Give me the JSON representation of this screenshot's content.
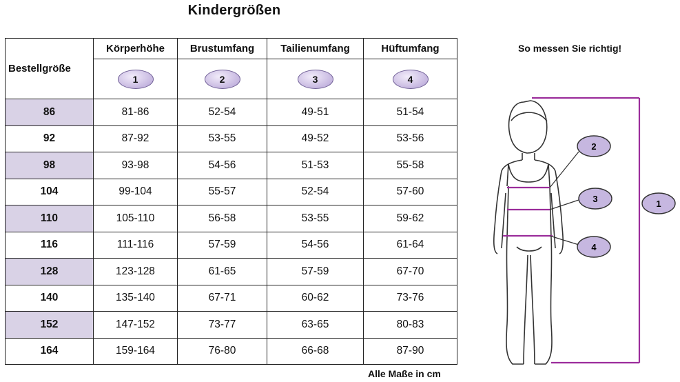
{
  "title": "Kindergrößen",
  "table": {
    "header_size": "Bestellgröße",
    "columns": [
      {
        "label": "Körperhöhe",
        "badge": "1"
      },
      {
        "label": "Brustumfang",
        "badge": "2"
      },
      {
        "label": "Tailienumfang",
        "badge": "3"
      },
      {
        "label": "Hüftumfang",
        "badge": "4"
      }
    ],
    "rows": [
      {
        "size": "86",
        "values": [
          "81-86",
          "52-54",
          "49-51",
          "51-54"
        ],
        "shaded": true
      },
      {
        "size": "92",
        "values": [
          "87-92",
          "53-55",
          "49-52",
          "53-56"
        ],
        "shaded": false
      },
      {
        "size": "98",
        "values": [
          "93-98",
          "54-56",
          "51-53",
          "55-58"
        ],
        "shaded": true
      },
      {
        "size": "104",
        "values": [
          "99-104",
          "55-57",
          "52-54",
          "57-60"
        ],
        "shaded": false
      },
      {
        "size": "110",
        "values": [
          "105-110",
          "56-58",
          "53-55",
          "59-62"
        ],
        "shaded": true
      },
      {
        "size": "116",
        "values": [
          "111-116",
          "57-59",
          "54-56",
          "61-64"
        ],
        "shaded": false
      },
      {
        "size": "128",
        "values": [
          "123-128",
          "61-65",
          "57-59",
          "67-70"
        ],
        "shaded": true
      },
      {
        "size": "140",
        "values": [
          "135-140",
          "67-71",
          "60-62",
          "73-76"
        ],
        "shaded": false
      },
      {
        "size": "152",
        "values": [
          "147-152",
          "73-77",
          "63-65",
          "80-83"
        ],
        "shaded": true
      },
      {
        "size": "164",
        "values": [
          "159-164",
          "76-80",
          "66-68",
          "87-90"
        ],
        "shaded": false
      }
    ]
  },
  "unit_note": "Alle Maße in cm",
  "figure": {
    "heading": "So messen Sie richtig!",
    "markers": [
      "2",
      "3",
      "4",
      "1"
    ]
  },
  "colors": {
    "shade": "#d9d2e6",
    "accent": "#9b2c9b",
    "badge": "#c6b7e0"
  }
}
